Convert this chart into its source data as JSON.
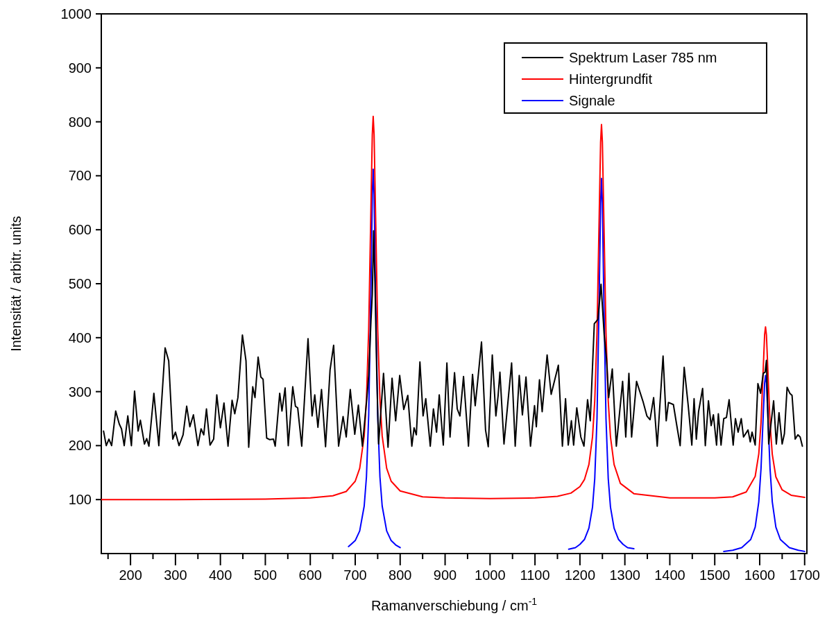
{
  "chart_data": {
    "type": "line",
    "xlabel": "Ramanverschiebung / cm$^{-1}$",
    "ylabel": "Intensität / arbitr. units",
    "xlim": [
      135,
      1705
    ],
    "ylim": [
      0,
      1000
    ],
    "xticks": [
      {
        "value": 150,
        "label": null
      },
      200,
      {
        "value": 250,
        "label": null
      },
      300,
      {
        "value": 350,
        "label": null
      },
      400,
      {
        "value": 450,
        "label": null
      },
      500,
      {
        "value": 550,
        "label": null
      },
      600,
      {
        "value": 650,
        "label": null
      },
      700,
      {
        "value": 750,
        "label": null
      },
      800,
      {
        "value": 850,
        "label": null
      },
      900,
      {
        "value": 950,
        "label": null
      },
      1000,
      {
        "value": 1050,
        "label": null
      },
      1100,
      {
        "value": 1150,
        "label": null
      },
      1200,
      {
        "value": 1250,
        "label": null
      },
      1300,
      {
        "value": 1350,
        "label": null
      },
      1400,
      {
        "value": 1450,
        "label": null
      },
      1500,
      {
        "value": 1550,
        "label": null
      },
      1600,
      {
        "value": 1650,
        "label": null
      },
      1700
    ],
    "yticks": [
      100,
      200,
      300,
      400,
      500,
      600,
      700,
      800,
      900,
      1000
    ],
    "grid": false,
    "legend": "top right",
    "marker": "none",
    "line_style": "solid",
    "series": [
      {
        "name": "Spektrum Laser 785 nm",
        "color": "#000000",
        "x": [
          140,
          146,
          152,
          158,
          167,
          175,
          180,
          186,
          194,
          202,
          209,
          217,
          222,
          231,
          236,
          241,
          252,
          263,
          277,
          285,
          294,
          300,
          308,
          317,
          325,
          332,
          340,
          350,
          357,
          363,
          369,
          377,
          385,
          392,
          400,
          408,
          417,
          426,
          432,
          439,
          449,
          457,
          463,
          472,
          477,
          484,
          490,
          495,
          503,
          510,
          518,
          522,
          532,
          537,
          544,
          551,
          561,
          567,
          572,
          581,
          595,
          604,
          610,
          617,
          625,
          634,
          644,
          652,
          663,
          673,
          680,
          689,
          699,
          707,
          716,
          726,
          730,
          735,
          738,
          741,
          744,
          748,
          752,
          763,
          773,
          782,
          790,
          799,
          808,
          817,
          826,
          831,
          836,
          844,
          851,
          857,
          867,
          874,
          881,
          887,
          896,
          904,
          911,
          921,
          927,
          933,
          941,
          952,
          961,
          967,
          974,
          981,
          990,
          996,
          1005,
          1013,
          1018,
          1022,
          1031,
          1048,
          1056,
          1065,
          1072,
          1080,
          1090,
          1099,
          1103,
          1110,
          1116,
          1127,
          1136,
          1152,
          1161,
          1168,
          1174,
          1181,
          1186,
          1193,
          1202,
          1209,
          1217,
          1223,
          1232,
          1240,
          1247,
          1254,
          1259,
          1264,
          1272,
          1281,
          1295,
          1302,
          1309,
          1315,
          1326,
          1341,
          1349,
          1356,
          1364,
          1372,
          1385,
          1392,
          1397,
          1408,
          1415,
          1423,
          1432,
          1441,
          1449,
          1454,
          1459,
          1464,
          1473,
          1479,
          1486,
          1492,
          1497,
          1504,
          1508,
          1514,
          1520,
          1526,
          1532,
          1541,
          1546,
          1552,
          1559,
          1564,
          1574,
          1579,
          1583,
          1590,
          1596,
          1602,
          1608,
          1612,
          1615,
          1620,
          1631,
          1637,
          1643,
          1650,
          1655,
          1661,
          1667,
          1672,
          1679,
          1685,
          1690,
          1695
        ],
        "values": [
          227,
          200,
          212,
          200,
          264,
          240,
          231,
          200,
          255,
          200,
          301,
          227,
          247,
          203,
          213,
          199,
          297,
          200,
          381,
          357,
          212,
          225,
          200,
          220,
          273,
          235,
          257,
          200,
          231,
          220,
          268,
          201,
          212,
          294,
          233,
          279,
          199,
          284,
          259,
          289,
          405,
          357,
          197,
          309,
          289,
          364,
          327,
          323,
          214,
          211,
          212,
          199,
          297,
          264,
          307,
          200,
          309,
          273,
          270,
          199,
          398,
          255,
          294,
          234,
          304,
          198,
          340,
          386,
          199,
          254,
          216,
          304,
          221,
          275,
          199,
          289,
          330,
          430,
          480,
          598,
          500,
          330,
          203,
          334,
          197,
          325,
          246,
          330,
          267,
          293,
          199,
          233,
          220,
          355,
          255,
          287,
          199,
          268,
          225,
          294,
          201,
          353,
          216,
          335,
          268,
          255,
          328,
          199,
          332,
          274,
          332,
          392,
          229,
          198,
          368,
          255,
          293,
          336,
          203,
          353,
          199,
          330,
          257,
          327,
          199,
          274,
          235,
          322,
          263,
          368,
          295,
          349,
          199,
          287,
          201,
          246,
          201,
          270,
          216,
          199,
          285,
          246,
          426,
          434,
          499,
          405,
          362,
          289,
          342,
          199,
          319,
          216,
          334,
          216,
          319,
          280,
          255,
          248,
          289,
          199,
          366,
          246,
          280,
          276,
          240,
          200,
          345,
          274,
          201,
          287,
          212,
          263,
          306,
          200,
          283,
          237,
          257,
          201,
          259,
          201,
          250,
          252,
          285,
          201,
          250,
          225,
          250,
          216,
          229,
          207,
          225,
          201,
          315,
          297,
          334,
          336,
          358,
          203,
          283,
          203,
          261,
          203,
          222,
          308,
          297,
          293,
          212,
          220,
          216,
          199
        ]
      },
      {
        "name": "Hintergrundfit",
        "color": "#ff0000",
        "x": [
          135,
          300,
          500,
          600,
          650,
          680,
          700,
          710,
          720,
          725,
          730,
          735,
          738,
          740,
          742,
          745,
          750,
          755,
          760,
          770,
          780,
          800,
          850,
          900,
          1000,
          1100,
          1150,
          1180,
          1200,
          1210,
          1220,
          1228,
          1233,
          1238,
          1243,
          1246,
          1248,
          1250,
          1253,
          1258,
          1263,
          1268,
          1276,
          1290,
          1320,
          1400,
          1500,
          1540,
          1570,
          1590,
          1598,
          1603,
          1608,
          1611,
          1613,
          1615,
          1618,
          1623,
          1628,
          1636,
          1650,
          1670,
          1700
        ],
        "values": [
          100,
          100,
          101,
          103,
          107,
          115,
          134,
          158,
          218,
          286,
          416,
          641,
          776,
          810,
          776,
          641,
          416,
          286,
          218,
          158,
          134,
          116,
          105,
          103,
          102,
          103,
          106,
          112,
          124,
          137,
          165,
          216,
          283,
          409,
          630,
          762,
          795,
          762,
          630,
          409,
          283,
          216,
          165,
          130,
          111,
          103,
          103,
          105,
          114,
          143,
          185,
          243,
          345,
          406,
          420,
          405,
          344,
          242,
          184,
          142,
          118,
          108,
          104
        ]
      },
      {
        "name": "Signale",
        "color": "#0000ff",
        "x": [
          685,
          700,
          710,
          720,
          725,
          730,
          735,
          738,
          740,
          742,
          745,
          750,
          755,
          760,
          770,
          780,
          790,
          800,
          1000,
          1175,
          1190,
          1200,
          1210,
          1220,
          1228,
          1233,
          1238,
          1243,
          1246,
          1248,
          1250,
          1253,
          1258,
          1263,
          1268,
          1276,
          1286,
          1296,
          1306,
          1320,
          1400,
          1520,
          1540,
          1560,
          1580,
          1590,
          1598,
          1603,
          1608,
          1611,
          1613,
          1615,
          1618,
          1623,
          1628,
          1636,
          1646,
          1666,
          1686,
          1700
        ],
        "values": [
          13,
          24,
          42,
          88,
          142,
          256,
          493,
          665,
          712,
          665,
          493,
          256,
          142,
          88,
          42,
          24,
          16,
          11,
          null,
          8,
          11,
          17,
          26,
          47,
          86,
          139,
          250,
          481,
          649,
          695,
          649,
          481,
          250,
          139,
          86,
          47,
          26,
          17,
          11,
          9,
          null,
          4,
          6,
          11,
          26,
          49,
          96,
          158,
          259,
          316,
          330,
          316,
          259,
          158,
          96,
          49,
          26,
          11,
          6,
          4
        ]
      }
    ]
  }
}
